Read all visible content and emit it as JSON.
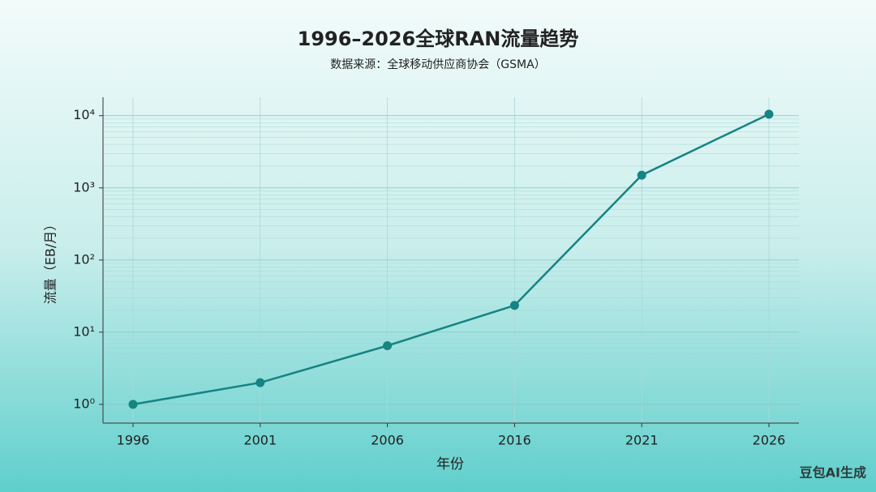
{
  "chart_data": {
    "type": "line",
    "title": "1996–2026全球RAN流量趋势",
    "subtitle": "数据来源：全球移动供应商协会（GSMA）",
    "x_label": "年份",
    "y_label": "流量（EB/月）",
    "categories": [
      "1996",
      "2001",
      "2006",
      "2016",
      "2021",
      "2026"
    ],
    "series": [
      {
        "name": "RAN流量",
        "color": "#158482",
        "values": [
          1.0,
          2.0,
          6.5,
          23.5,
          1500,
          10500
        ]
      }
    ],
    "y_scale": "log",
    "ylim": [
      0.55,
      18000
    ],
    "yticks": [
      {
        "value": 1,
        "label": "10⁰"
      },
      {
        "value": 10,
        "label": "10¹"
      },
      {
        "value": 100,
        "label": "10²"
      },
      {
        "value": 1000,
        "label": "10³"
      },
      {
        "value": 10000,
        "label": "10⁴"
      }
    ],
    "grid": true,
    "watermark": "豆包AI生成"
  }
}
